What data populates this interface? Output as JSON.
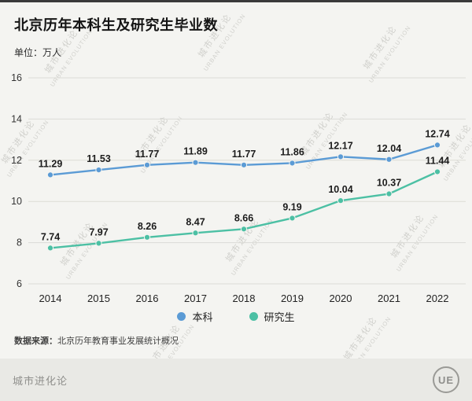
{
  "header": {
    "title": "北京历年本科生及研究生毕业数",
    "unit": "单位：万人"
  },
  "chart_data": {
    "type": "line",
    "title": "北京历年本科生及研究生毕业数",
    "unit_label": "单位：万人",
    "categories": [
      "2014",
      "2015",
      "2016",
      "2017",
      "2018",
      "2019",
      "2020",
      "2021",
      "2022"
    ],
    "series": [
      {
        "name": "本科",
        "color": "#5b9bd5",
        "values": [
          11.29,
          11.53,
          11.77,
          11.89,
          11.77,
          11.86,
          12.17,
          12.04,
          12.74
        ]
      },
      {
        "name": "研究生",
        "color": "#4cc0a4",
        "values": [
          7.74,
          7.97,
          8.26,
          8.47,
          8.66,
          9.19,
          10.04,
          10.37,
          11.44
        ]
      }
    ],
    "ylim": [
      6,
      16
    ],
    "yticks": [
      6,
      8,
      10,
      12,
      14,
      16
    ],
    "grid": true,
    "legend_position": "bottom"
  },
  "source": {
    "label": "数据来源：",
    "text": "北京历年教育事业发展统计概况"
  },
  "footer": {
    "brand": "城市进化论",
    "logo": "UE"
  },
  "watermark": {
    "line1": "城市进化论",
    "line2": "URBAN EVOLUTION"
  }
}
